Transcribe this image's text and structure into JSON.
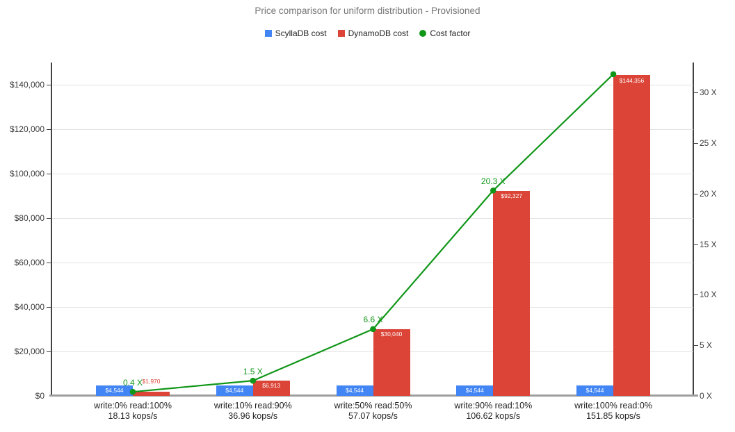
{
  "legend": {
    "items": [
      {
        "label": "ScyllaDB cost",
        "shape": "square",
        "color": "#4285F4"
      },
      {
        "label": "DynamoDB cost",
        "shape": "square",
        "color": "#DB4437"
      },
      {
        "label": "Cost factor",
        "shape": "circle",
        "color": "#109618"
      }
    ]
  },
  "chart_data": {
    "type": "bar",
    "subtype": "combo bar + line, dual y-axis",
    "title": "Price comparison for uniform distribution - Provisioned",
    "xlabel": "",
    "ylabel_left": "",
    "ylabel_right": "",
    "grid": true,
    "legend_position": "top",
    "categories": [
      {
        "workload": "write:0% read:100%",
        "throughput": "18.13 kops/s"
      },
      {
        "workload": "write:10% read:90%",
        "throughput": "36.96 kops/s"
      },
      {
        "workload": "write:50% read:50%",
        "throughput": "57.07 kops/s"
      },
      {
        "workload": "write:90% read:10%",
        "throughput": "106.62 kops/s"
      },
      {
        "workload": "write:100% read:0%",
        "throughput": "151.85 kops/s"
      }
    ],
    "series": [
      {
        "name": "ScyllaDB cost",
        "type": "bar",
        "axis": "left",
        "color": "#4285F4",
        "values": [
          4544,
          4544,
          4544,
          4544,
          4544
        ],
        "labels": [
          "$4,544",
          "$4,544",
          "$4,544",
          "$4,544",
          "$4,544"
        ],
        "label_color": "#ffffff"
      },
      {
        "name": "DynamoDB cost",
        "type": "bar",
        "axis": "left",
        "color": "#DB4437",
        "values": [
          1970,
          6913,
          30040,
          92327,
          144356
        ],
        "labels": [
          "$1,970",
          "$6,913",
          "$30,040",
          "$92,327",
          "$144,356"
        ],
        "label_color": "#ffffff"
      },
      {
        "name": "Cost factor",
        "type": "line",
        "axis": "right",
        "color": "#109618",
        "values": [
          0.4,
          1.5,
          6.6,
          20.3,
          31.8
        ],
        "point_labels": [
          "0.4 X",
          "1.5 X",
          "6.6 X",
          "20.3 X",
          ""
        ]
      }
    ],
    "left_axis": {
      "range": [
        0,
        140000
      ],
      "ticks": [
        {
          "value": 0,
          "label": "$0"
        },
        {
          "value": 20000,
          "label": "$20,000"
        },
        {
          "value": 40000,
          "label": "$40,000"
        },
        {
          "value": 60000,
          "label": "$60,000"
        },
        {
          "value": 80000,
          "label": "$80,000"
        },
        {
          "value": 100000,
          "label": "$100,000"
        },
        {
          "value": 120000,
          "label": "$120,000"
        },
        {
          "value": 140000,
          "label": "$140,000"
        }
      ]
    },
    "right_axis": {
      "range": [
        0,
        30
      ],
      "ticks": [
        {
          "value": 0,
          "label": "0 X"
        },
        {
          "value": 5,
          "label": "5 X"
        },
        {
          "value": 10,
          "label": "10 X"
        },
        {
          "value": 15,
          "label": "15 X"
        },
        {
          "value": 20,
          "label": "20 X"
        },
        {
          "value": 25,
          "label": "25 X"
        },
        {
          "value": 30,
          "label": "30 X"
        }
      ]
    }
  }
}
